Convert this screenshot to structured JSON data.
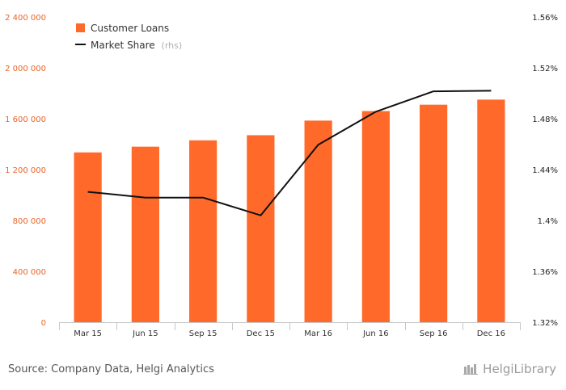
{
  "chart_data": {
    "type": "bar",
    "categories": [
      "Mar 15",
      "Jun 15",
      "Sep 15",
      "Dec 15",
      "Mar 16",
      "Jun 16",
      "Sep 16",
      "Dec 16"
    ],
    "series": [
      {
        "name": "Customer Loans",
        "type": "bar",
        "axis": "left",
        "color": "#ff6a2a",
        "values": [
          1335000,
          1380000,
          1430000,
          1470000,
          1585000,
          1660000,
          1710000,
          1750000
        ]
      },
      {
        "name": "Market Share",
        "name_suffix": "(rhs)",
        "type": "line",
        "axis": "right",
        "color": "#111111",
        "values": [
          1.4225,
          1.418,
          1.418,
          1.404,
          1.4595,
          1.4855,
          1.5015,
          1.502
        ]
      }
    ],
    "y_left": {
      "ylim": [
        0,
        2400000
      ],
      "ticks": [
        0,
        400000,
        800000,
        1200000,
        1600000,
        2000000,
        2400000
      ],
      "tick_labels": [
        "0",
        "400 000",
        "800 000",
        "1 200 000",
        "1 600 000",
        "2 000 000",
        "2 400 000"
      ]
    },
    "y_right": {
      "ylim": [
        1.32,
        1.56
      ],
      "ticks": [
        1.32,
        1.36,
        1.4,
        1.44,
        1.48,
        1.52,
        1.56
      ],
      "tick_labels": [
        "1.32%",
        "1.36%",
        "1.4%",
        "1.44%",
        "1.48%",
        "1.52%",
        "1.56%"
      ]
    },
    "grid": false,
    "legend_position": "top-left"
  },
  "footer": {
    "source": "Source: Company Data, Helgi Analytics",
    "brand": "HelgiLibrary"
  }
}
